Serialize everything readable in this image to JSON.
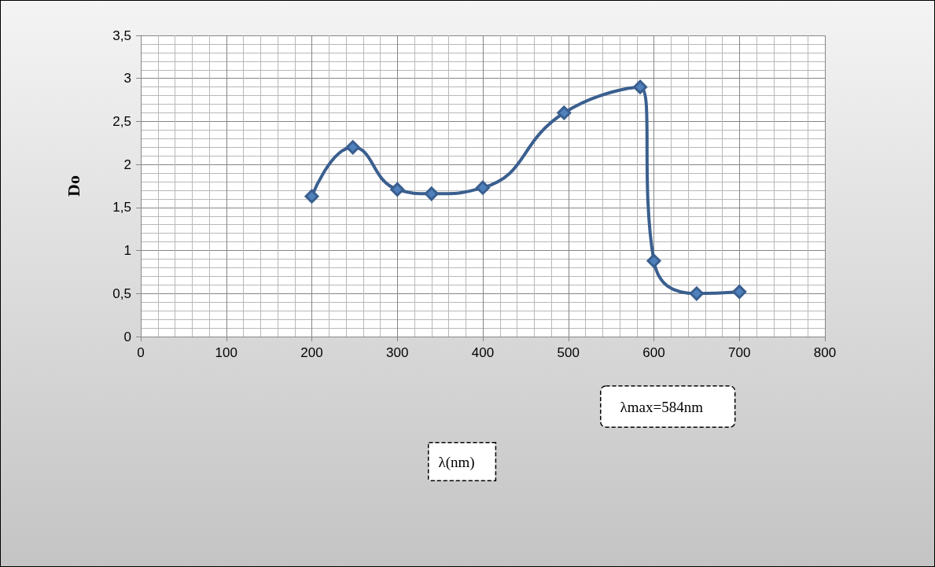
{
  "chart_data": {
    "type": "line",
    "ylabel": "Do",
    "x": [
      200,
      248,
      300,
      340,
      400,
      495,
      584,
      600,
      650,
      700
    ],
    "series": [
      {
        "color": "#3a5f8f",
        "values": [
          1.63,
          2.2,
          1.71,
          1.66,
          1.73,
          2.6,
          2.9,
          0.88,
          0.5,
          0.52
        ]
      }
    ],
    "xlim": [
      0,
      800
    ],
    "xticks": [
      0,
      100,
      200,
      300,
      400,
      500,
      600,
      700,
      800
    ],
    "ylim": [
      0,
      3.5
    ],
    "yticks": [
      0,
      {
        "value": 0.5,
        "label": "0,5"
      },
      1,
      {
        "value": 1.5,
        "label": "1,5"
      },
      2,
      {
        "value": 2.5,
        "label": "2,5"
      },
      3,
      {
        "value": 3.5,
        "label": "3,5"
      }
    ],
    "grid": true,
    "marker": "diamond",
    "line_style": "solid",
    "annotations": [
      "λmax=584nm",
      "λ(nm)"
    ]
  }
}
